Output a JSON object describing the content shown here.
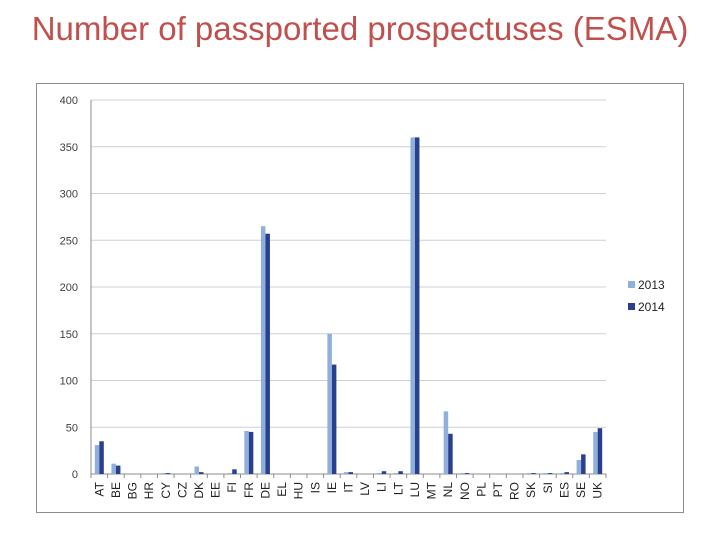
{
  "slide": {
    "title": "Number of passported prospectuses (ESMA)"
  },
  "chart_data": {
    "type": "bar",
    "title": "",
    "xlabel": "",
    "ylabel": "",
    "ylim": [
      0,
      400
    ],
    "yticks": [
      0,
      50,
      100,
      150,
      200,
      250,
      300,
      350,
      400
    ],
    "grid": true,
    "legend_position": "right",
    "categories": [
      "AT",
      "BE",
      "BG",
      "HR",
      "CY",
      "CZ",
      "DK",
      "EE",
      "FI",
      "FR",
      "DE",
      "EL",
      "HU",
      "IS",
      "IE",
      "IT",
      "LV",
      "LI",
      "LT",
      "LU",
      "MT",
      "NL",
      "NO",
      "PL",
      "PT",
      "RO",
      "SK",
      "SI",
      "ES",
      "SE",
      "UK"
    ],
    "series": [
      {
        "name": "2013",
        "color": "#8fb0dc",
        "values": [
          31,
          11,
          0,
          0,
          1,
          0,
          8,
          0,
          1,
          46,
          265,
          0,
          0,
          0,
          150,
          2,
          0,
          1,
          1,
          360,
          0,
          67,
          1,
          0,
          0,
          0,
          1,
          1,
          1,
          15,
          45
        ]
      },
      {
        "name": "2014",
        "color": "#2b3f8f",
        "values": [
          35,
          9,
          0,
          0,
          1,
          0,
          2,
          0,
          5,
          45,
          257,
          0,
          0,
          0,
          117,
          2,
          0,
          3,
          3,
          360,
          0,
          43,
          1,
          0,
          0,
          0,
          1,
          1,
          2,
          21,
          49
        ]
      }
    ]
  }
}
